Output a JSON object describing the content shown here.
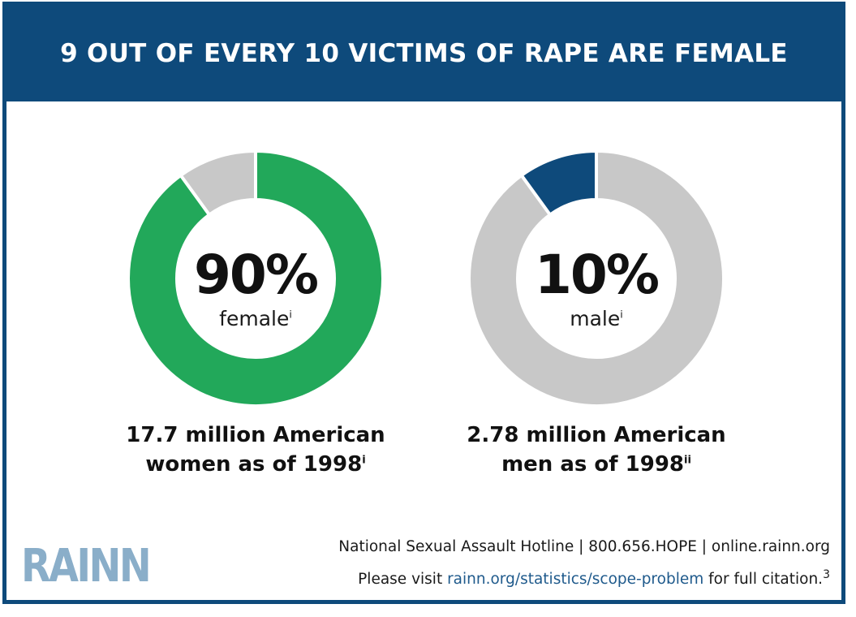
{
  "title": "9 OUT OF EVERY 10 VICTIMS OF RAPE ARE FEMALE",
  "colors": {
    "banner": "#0e4a7b",
    "female": "#22a85a",
    "male": "#0e4a7b",
    "remainder": "#c8c8c8",
    "logo": "#8aaec9"
  },
  "chart_data": [
    {
      "type": "pie",
      "variant": "donut",
      "slices": [
        {
          "label": "female",
          "value": 90,
          "color": "#22a85a"
        },
        {
          "label": "other",
          "value": 10,
          "color": "#c8c8c8"
        }
      ],
      "center_value": "90%",
      "center_label": "female",
      "center_sup": "i",
      "caption_line1": "17.7 million American",
      "caption_line2": "women as of 1998",
      "caption_sup": "i"
    },
    {
      "type": "pie",
      "variant": "donut",
      "slices": [
        {
          "label": "male",
          "value": 10,
          "color": "#0e4a7b"
        },
        {
          "label": "other",
          "value": 90,
          "color": "#c8c8c8"
        }
      ],
      "center_value": "10%",
      "center_label": "male",
      "center_sup": "i",
      "caption_line1": "2.78 million American",
      "caption_line2": "men as of 1998",
      "caption_sup": "ii"
    }
  ],
  "footer": {
    "hotline": "National Sexual Assault Hotline | 800.656.HOPE | online.rainn.org",
    "visit_prefix": "Please visit ",
    "visit_link": "rainn.org/statistics/scope-problem",
    "visit_suffix": " for full citation.",
    "citation_number": "3"
  },
  "logo_text": "RAINN"
}
